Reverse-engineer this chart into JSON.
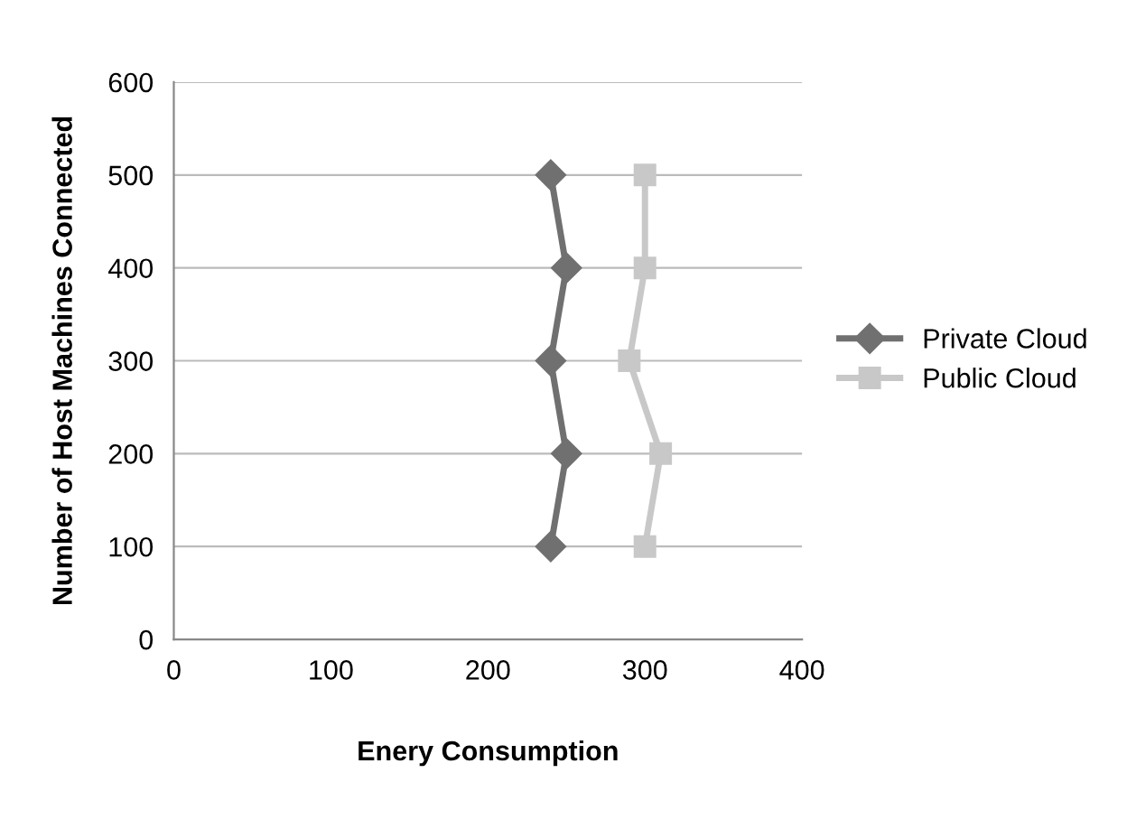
{
  "chart_data": {
    "type": "line",
    "xlabel": "Enery Consumption",
    "ylabel": "Number of Host Machines Connected",
    "series": [
      {
        "name": "Private Cloud",
        "color": "#707070",
        "marker": "diamond",
        "x": [
          240,
          250,
          240,
          250,
          240
        ],
        "values": [
          100,
          200,
          300,
          400,
          500
        ]
      },
      {
        "name": "Public Cloud",
        "color": "#c8c8c8",
        "marker": "square",
        "x": [
          300,
          310,
          290,
          300,
          300
        ],
        "values": [
          100,
          200,
          300,
          400,
          500
        ]
      }
    ],
    "xlim": [
      0,
      400
    ],
    "xticks": [
      0,
      100,
      200,
      300,
      400
    ],
    "ylim": [
      0,
      600
    ],
    "yticks": [
      0,
      100,
      200,
      300,
      400,
      500,
      600
    ],
    "grid": "y",
    "legend": "right",
    "line_style": "solid"
  }
}
